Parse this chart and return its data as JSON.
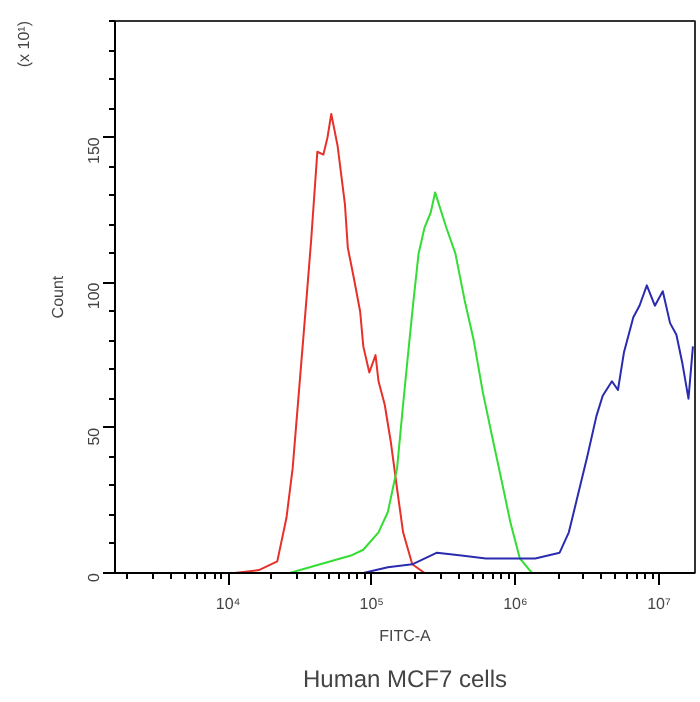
{
  "chart_data": {
    "type": "line",
    "xlabel": "FITC-A",
    "ylabel": "Count",
    "log": "x",
    "grid": false,
    "marker": "none",
    "line_style": "solid",
    "xlim": [
      1630,
      17800000
    ],
    "xticks": [
      {
        "value": 10000,
        "label": "10⁴"
      },
      {
        "value": 100000,
        "label": "10⁵"
      },
      {
        "value": 1000000,
        "label": "10⁶"
      },
      {
        "value": 10000000,
        "label": "10⁷"
      }
    ],
    "ylim": [
      0,
      190
    ],
    "yticks": [
      0,
      50,
      100,
      150
    ],
    "annotations": [
      "(x 10¹)",
      "Human MCF7 cells"
    ],
    "series": [
      {
        "color": "#e8302a",
        "x": [
          11070,
          16370,
          21980,
          25470,
          28120,
          31050,
          34280,
          37760,
          41780,
          46030,
          49200,
          52240,
          57810,
          65010,
          68080,
          75340,
          82990,
          87300,
          96160,
          106200,
          111400,
          123000,
          135800,
          150000,
          165200,
          191400,
          233300
        ],
        "values": [
          0,
          1,
          4,
          19,
          36,
          62,
          88,
          114,
          145,
          144,
          150,
          158,
          147,
          127,
          112,
          101,
          90,
          78,
          69,
          75,
          66,
          58,
          45,
          29,
          14,
          3,
          0
        ]
      },
      {
        "color": "#33dd33",
        "x": [
          26790,
          43750,
          71610,
          87300,
          111400,
          129400,
          150000,
          165200,
          182800,
          195400,
          211800,
          233300,
          257000,
          276100,
          329600,
          381900,
          442600,
          512900,
          594300,
          688600,
          799800,
          926800,
          1074000,
          1304000
        ],
        "values": [
          0,
          3,
          6,
          8,
          14,
          21,
          36,
          58,
          80,
          94,
          110,
          119,
          124,
          131,
          119,
          110,
          94,
          80,
          62,
          47,
          32,
          17,
          5,
          0
        ]
      },
      {
        "color": "#2b2bb0",
        "x": [
          87300,
          129400,
          191400,
          284400,
          420700,
          623700,
          926800,
          1374000,
          2032000,
          2355000,
          2729000,
          3162000,
          3664000,
          4055000,
          4699000,
          5176000,
          5702000,
          6622000,
          7311000,
          8222000,
          9354000,
          10620000,
          11940000,
          13210000,
          14560000,
          16030000,
          17220000
        ],
        "values": [
          0,
          2,
          3,
          7,
          6,
          5,
          5,
          5,
          7,
          14,
          27,
          40,
          54,
          61,
          66,
          63,
          76,
          88,
          92,
          99,
          92,
          97,
          86,
          82,
          72,
          60,
          78
        ]
      }
    ]
  }
}
